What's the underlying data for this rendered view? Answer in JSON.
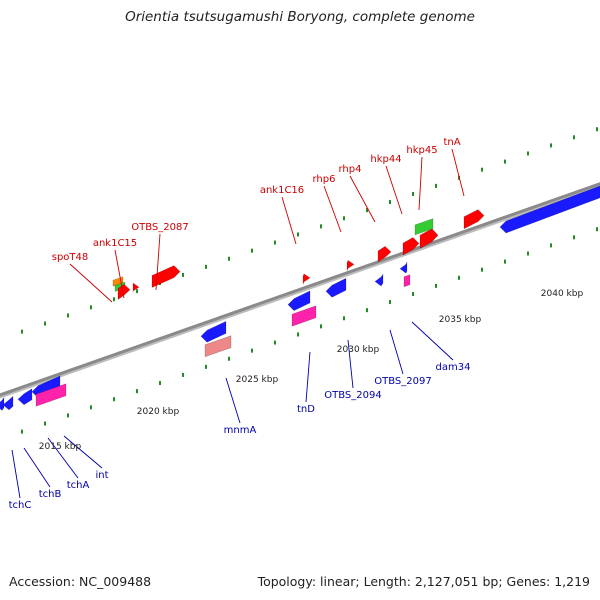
{
  "title": "Orientia tsutsugamushi Boryong, complete genome",
  "footer": {
    "accession": "Accession: NC_009488",
    "topology": "Topology: linear; Length: 2,127,051 bp; Genes: 1,219"
  },
  "colors": {
    "forward_label": "#cc0000",
    "reverse_label": "#0000aa",
    "red_gene": "#ff0000",
    "blue_gene": "#1a1aff",
    "magenta_gene": "#ff22aa",
    "green_gene": "#33cc33",
    "pink_gene": "#ee8888",
    "orange_gene": "#ff8800",
    "backbone": "#8a8a8a",
    "dots": "#228b22"
  },
  "scale_labels": [
    "2015 kbp",
    "2020 kbp",
    "2025 kbp",
    "2030 kbp",
    "2035 kbp",
    "2040 kbp"
  ],
  "forward_genes": [
    "spoT48",
    "ank1C15",
    "OTBS_2087",
    "ank1C16",
    "rhp6",
    "rhp4",
    "hkp44",
    "hkp45",
    "tnA"
  ],
  "reverse_genes": [
    "tchC",
    "tchB",
    "tchA",
    "int",
    "mnmA",
    "tnD",
    "OTBS_2094",
    "OTBS_2097",
    "dam34"
  ]
}
